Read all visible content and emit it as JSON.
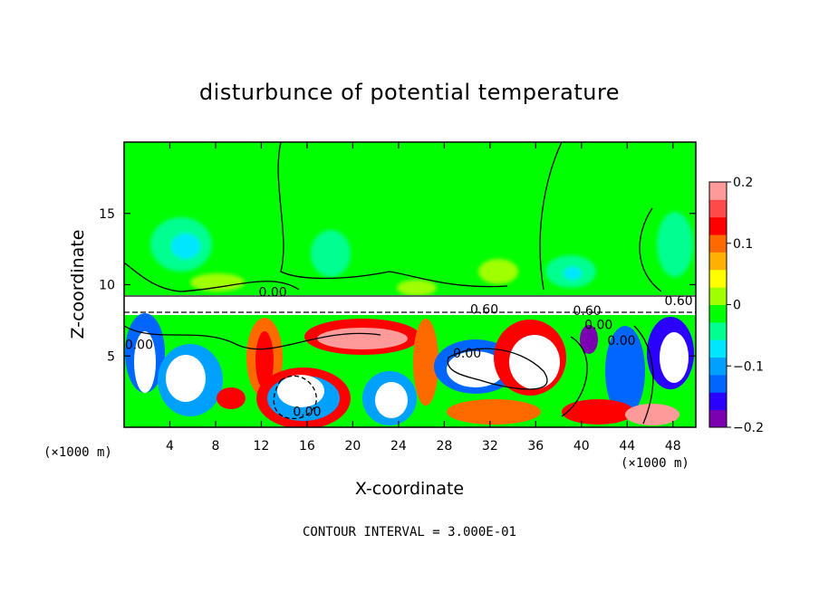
{
  "chart_data": {
    "type": "heatmap",
    "title": "disturbunce of potential temperature",
    "xlabel": "X-coordinate",
    "ylabel": "Z-coordinate",
    "x_unit": "(×1000 m)",
    "z_unit": "(×1000 m)",
    "xlim": [
      0,
      50
    ],
    "ylim": [
      0,
      20
    ],
    "x_ticks": [
      4,
      8,
      12,
      16,
      20,
      24,
      28,
      32,
      36,
      40,
      44,
      48
    ],
    "y_ticks": [
      5,
      10,
      15
    ],
    "colorbar": {
      "range": [
        -0.2,
        0.2
      ],
      "ticks": [
        0.2,
        0.1,
        0,
        -0.1,
        -0.2
      ],
      "tick_labels": [
        "0.2",
        "0.1",
        "0",
        "−0.1",
        "−0.2"
      ],
      "colors": [
        "#7a00b0",
        "#2a00ff",
        "#0066ff",
        "#00a0ff",
        "#00e6ff",
        "#00ff90",
        "#00ff00",
        "#a0ff00",
        "#ffff00",
        "#ffb000",
        "#ff6a00",
        "#ff0000",
        "#ff4a4a",
        "#ff9a9a"
      ]
    },
    "contour_interval": "CONTOUR INTERVAL = 3.000E-01",
    "contour_labels": [
      {
        "text": "0.60",
        "x": 40.5,
        "z": 8.2
      },
      {
        "text": "0.60",
        "x": 31.5,
        "z": 8.3
      },
      {
        "text": "0.60",
        "x": 48.5,
        "z": 8.9
      },
      {
        "text": "0.00",
        "x": 13.0,
        "z": 9.5
      },
      {
        "text": "0.00",
        "x": 41.5,
        "z": 7.2
      },
      {
        "text": "0.00",
        "x": 30.0,
        "z": 5.2
      },
      {
        "text": "0.00",
        "x": 16.0,
        "z": 1.1
      },
      {
        "text": "0.00",
        "x": 1.3,
        "z": 5.8
      },
      {
        "text": "0.00",
        "x": 43.5,
        "z": 6.1
      }
    ]
  }
}
